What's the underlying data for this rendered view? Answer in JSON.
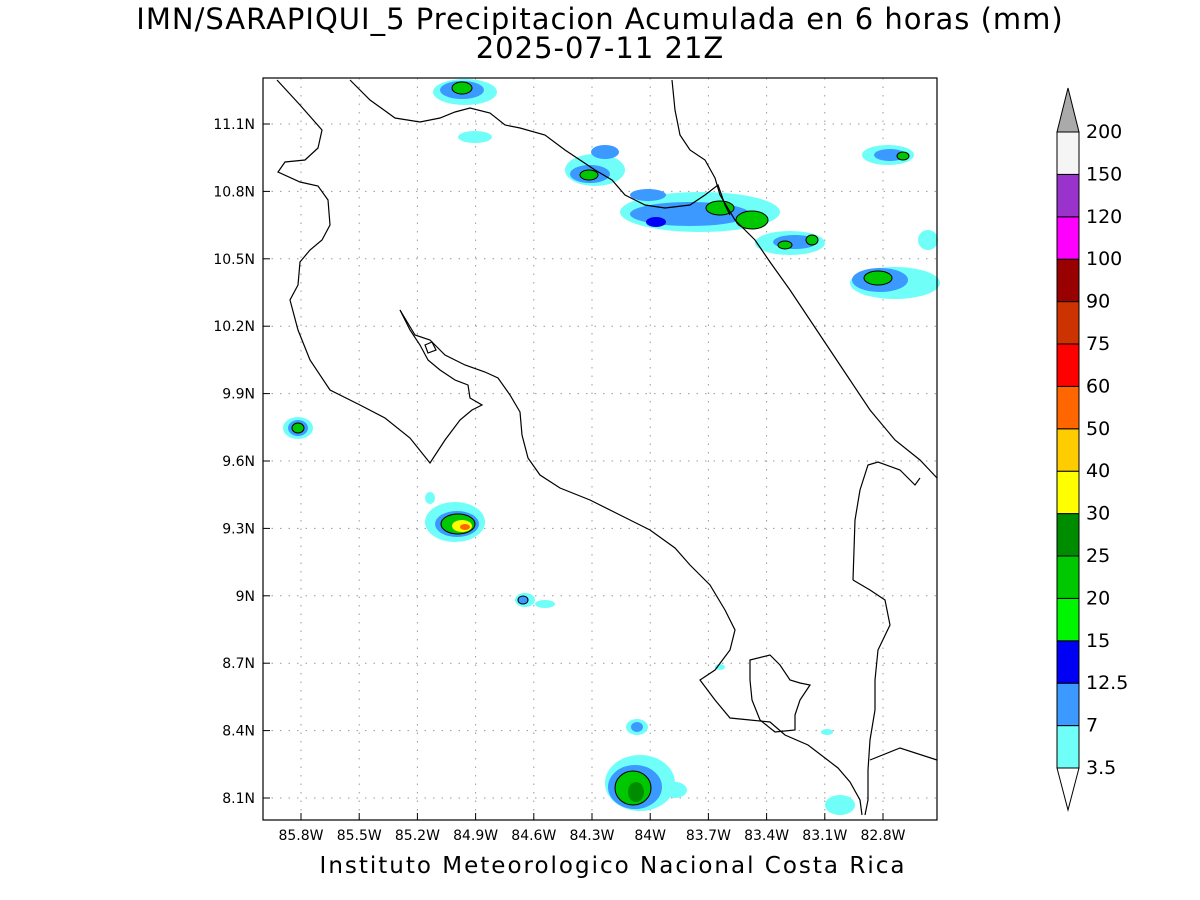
{
  "title": {
    "line1": "IMN/SARAPIQUI_5 Precipitacion Acumulada en 6 horas (mm)",
    "line2": "2025-07-11 21Z"
  },
  "footer": "Instituto Meteorologico Nacional Costa Rica",
  "map": {
    "lon_range": [
      -86.0,
      -82.5
    ],
    "lat_range": [
      8.0,
      11.3
    ],
    "lat_ticks": [
      "11.1N",
      "10.8N",
      "10.5N",
      "10.2N",
      "9.9N",
      "9.6N",
      "9.3N",
      "9N",
      "8.7N",
      "8.4N",
      "8.1N"
    ],
    "lon_ticks": [
      "85.8W",
      "85.5W",
      "85.2W",
      "84.9W",
      "84.6W",
      "84.3W",
      "84W",
      "83.7W",
      "83.4W",
      "83.1W",
      "82.8W"
    ],
    "grid": "dotted"
  },
  "colorbar": {
    "levels": [
      "3.5",
      "7",
      "12.5",
      "15",
      "20",
      "25",
      "30",
      "40",
      "50",
      "60",
      "75",
      "90",
      "100",
      "120",
      "150",
      "200"
    ],
    "colors": [
      "#6ffff8",
      "#3b99ff",
      "#0000f5",
      "#00f500",
      "#00c800",
      "#008c00",
      "#ffff00",
      "#ffcc00",
      "#ff6600",
      "#ff0000",
      "#cc3300",
      "#990000",
      "#ff00ff",
      "#9933cc",
      "#f5f5f5"
    ],
    "over_color": "#aaaaaa",
    "under_color": "#ffffff"
  }
}
